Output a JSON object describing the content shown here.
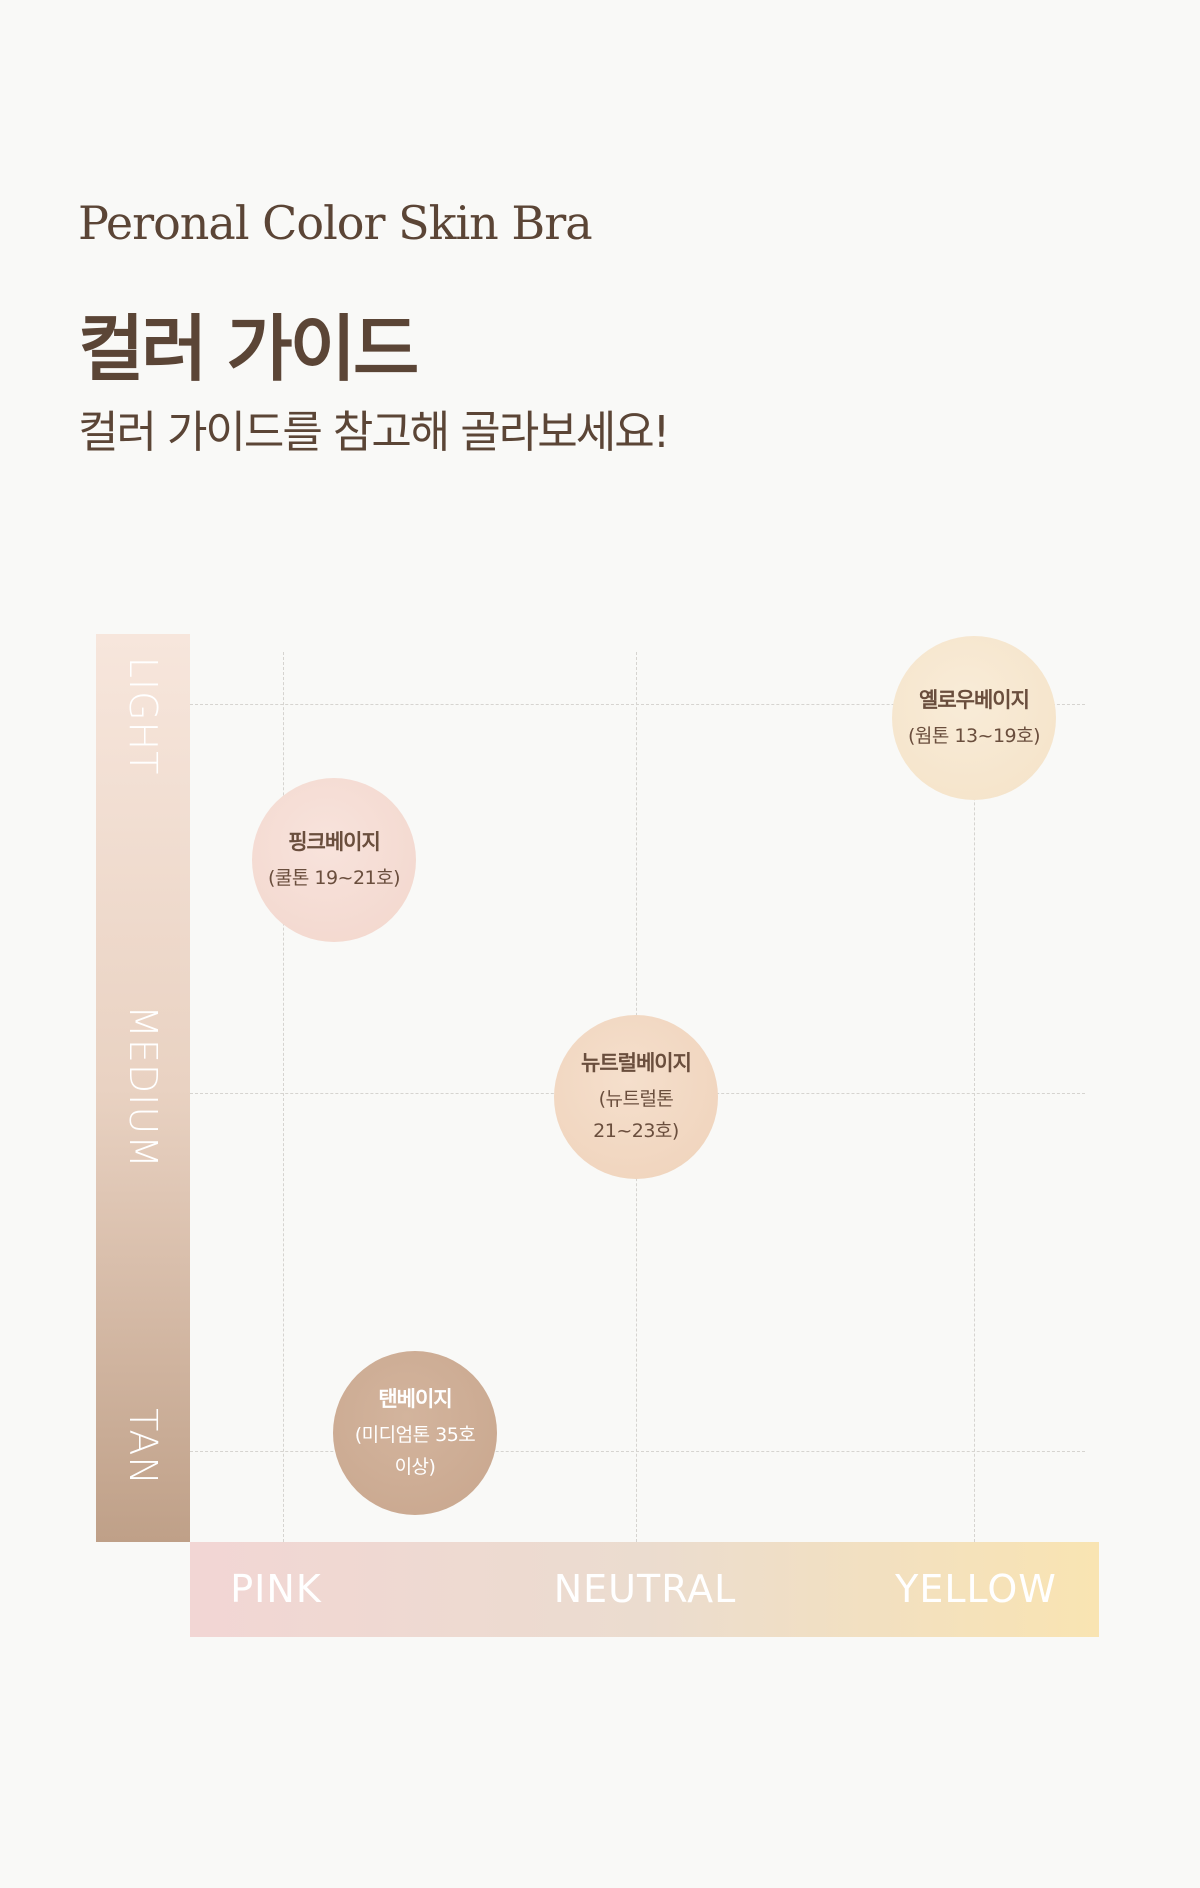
{
  "header": {
    "english_title": "Peronal Color Skin Bra",
    "title": "컬러 가이드",
    "subtitle": "컬러 가이드를 참고해 골라보세요!"
  },
  "axes": {
    "vertical": [
      "LIGHT",
      "MEDIUM",
      "TAN"
    ],
    "horizontal": [
      "PINK",
      "NEUTRAL",
      "YELLOW"
    ]
  },
  "shades": [
    {
      "name": "옐로우베이지",
      "desc": "(웜톤 13~19호)",
      "tone": "YELLOW",
      "depth": "LIGHT",
      "color": "#f7e7cf"
    },
    {
      "name": "핑크베이지",
      "desc": "(쿨톤 19~21호)",
      "tone": "PINK",
      "depth": "LIGHT-MEDIUM",
      "color": "#f5dcd4"
    },
    {
      "name": "뉴트럴베이지",
      "desc": "(뉴트럴톤 21~23호)",
      "tone": "NEUTRAL",
      "depth": "MEDIUM",
      "color": "#f2d7c1"
    },
    {
      "name": "탠베이지",
      "desc": "(미디엄톤 35호 이상)",
      "tone": "PINK-NEUTRAL",
      "depth": "TAN",
      "color": "#cdad95"
    }
  ]
}
